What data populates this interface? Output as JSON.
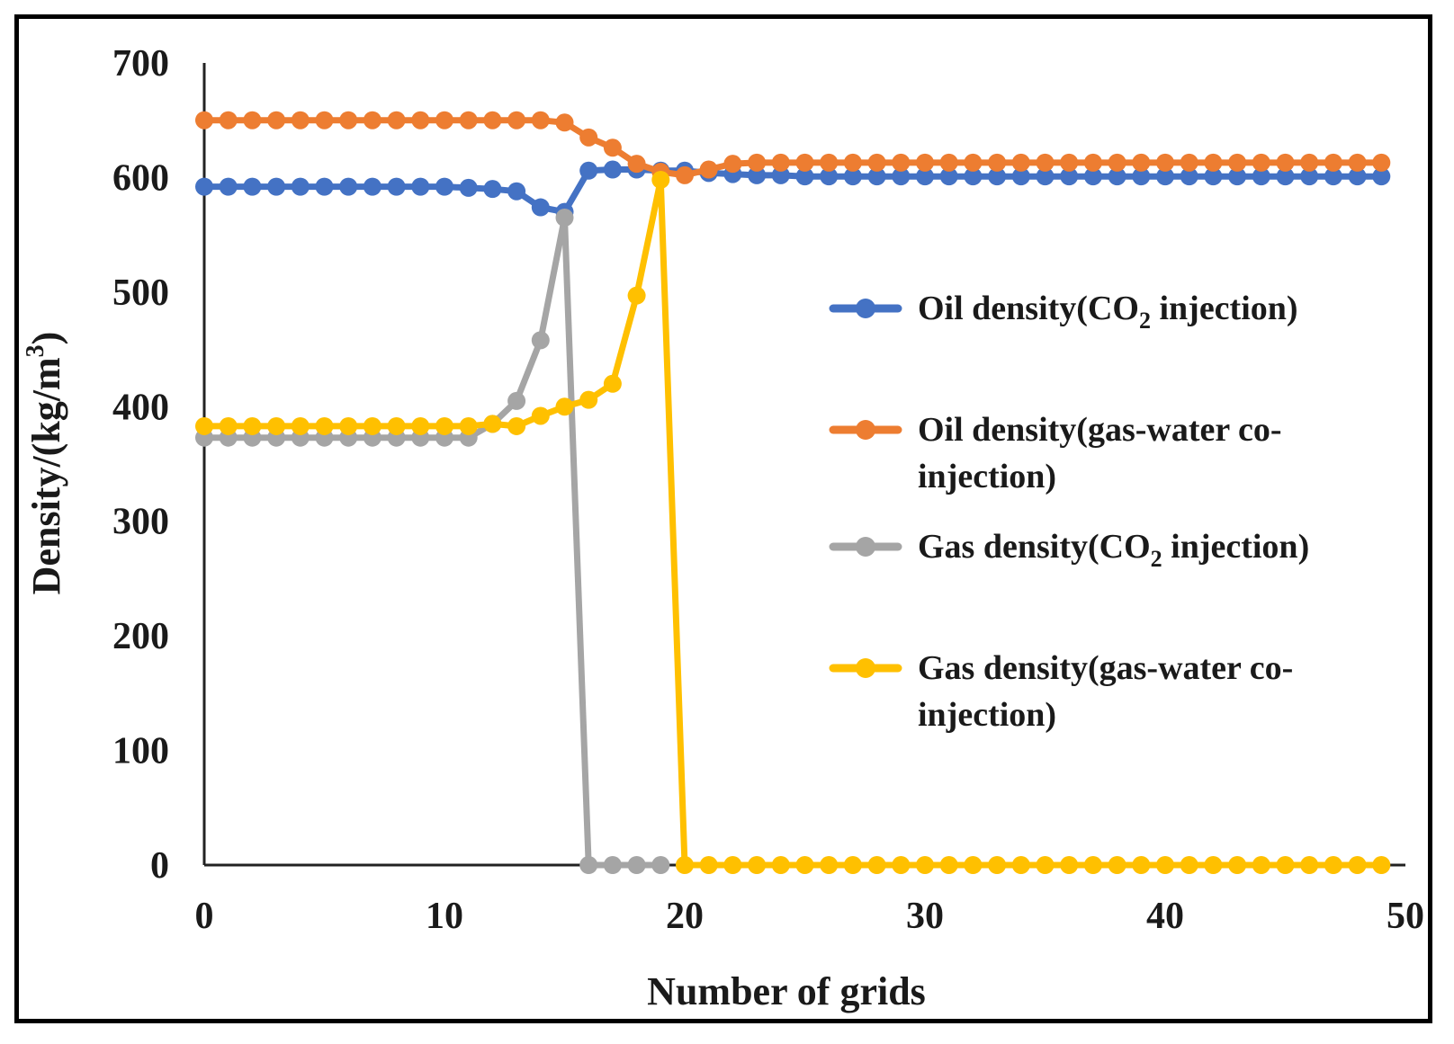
{
  "chart_data": {
    "type": "line",
    "title": "",
    "xlabel": "Number of grids",
    "ylabel": "Density/(kg/m3)",
    "ylabel_parts": {
      "main": "Density/(kg/m",
      "sup": "3",
      "close": ")"
    },
    "xlim": [
      0,
      50
    ],
    "ylim": [
      0,
      700
    ],
    "xticks": [
      0,
      10,
      20,
      30,
      40,
      50
    ],
    "yticks": [
      0,
      100,
      200,
      300,
      400,
      500,
      600,
      700
    ],
    "grid": false,
    "legend_position": "right",
    "x": [
      0,
      1,
      2,
      3,
      4,
      5,
      6,
      7,
      8,
      9,
      10,
      11,
      12,
      13,
      14,
      15,
      16,
      17,
      18,
      19,
      20,
      21,
      22,
      23,
      24,
      25,
      26,
      27,
      28,
      29,
      30,
      31,
      32,
      33,
      34,
      35,
      36,
      37,
      38,
      39,
      40,
      41,
      42,
      43,
      44,
      45,
      46,
      47,
      48,
      49
    ],
    "series": [
      {
        "name": "Oil density(CO2 injection)",
        "legend_lines": [
          {
            "pre": "Oil density(CO",
            "sub": "2",
            "post": " injection)"
          }
        ],
        "color": "#4472C4",
        "values": [
          592,
          592,
          592,
          592,
          592,
          592,
          592,
          592,
          592,
          592,
          592,
          591,
          590,
          588,
          574,
          570,
          606,
          607,
          607,
          606,
          606,
          604,
          603,
          602,
          602,
          601,
          601,
          601,
          601,
          601,
          601,
          601,
          601,
          601,
          601,
          601,
          601,
          601,
          601,
          601,
          601,
          601,
          601,
          601,
          601,
          601,
          601,
          601,
          601,
          601
        ]
      },
      {
        "name": "Oil density(gas-water co-injection)",
        "legend_lines": [
          {
            "pre": "Oil density(gas-water co-",
            "sub": "",
            "post": ""
          },
          {
            "pre": "injection)",
            "sub": "",
            "post": ""
          }
        ],
        "color": "#ED7D31",
        "values": [
          650,
          650,
          650,
          650,
          650,
          650,
          650,
          650,
          650,
          650,
          650,
          650,
          650,
          650,
          650,
          648,
          635,
          626,
          612,
          605,
          602,
          607,
          612,
          613,
          613,
          613,
          613,
          613,
          613,
          613,
          613,
          613,
          613,
          613,
          613,
          613,
          613,
          613,
          613,
          613,
          613,
          613,
          613,
          613,
          613,
          613,
          613,
          613,
          613,
          613
        ]
      },
      {
        "name": "Gas density(CO2 injection)",
        "legend_lines": [
          {
            "pre": "Gas density(CO",
            "sub": "2",
            "post": " injection)"
          }
        ],
        "color": "#A5A5A5",
        "values": [
          373,
          373,
          373,
          373,
          373,
          373,
          373,
          373,
          373,
          373,
          373,
          373,
          385,
          405,
          458,
          565,
          0,
          0,
          0,
          0,
          null,
          null,
          null,
          null,
          null,
          null,
          null,
          null,
          null,
          null,
          null,
          null,
          null,
          null,
          null,
          null,
          null,
          null,
          null,
          null,
          null,
          null,
          null,
          null,
          null,
          null,
          null,
          null,
          null,
          null
        ]
      },
      {
        "name": "Gas density(gas-water co-injection)",
        "legend_lines": [
          {
            "pre": "Gas density(gas-water co-",
            "sub": "",
            "post": ""
          },
          {
            "pre": "injection)",
            "sub": "",
            "post": ""
          }
        ],
        "color": "#FFC000",
        "values": [
          383,
          383,
          383,
          383,
          383,
          383,
          383,
          383,
          383,
          383,
          383,
          383,
          385,
          383,
          392,
          400,
          406,
          420,
          497,
          598,
          0,
          0,
          0,
          0,
          0,
          0,
          0,
          0,
          0,
          0,
          0,
          0,
          0,
          0,
          0,
          0,
          0,
          0,
          0,
          0,
          0,
          0,
          0,
          0,
          0,
          0,
          0,
          0,
          0,
          0
        ]
      }
    ]
  }
}
